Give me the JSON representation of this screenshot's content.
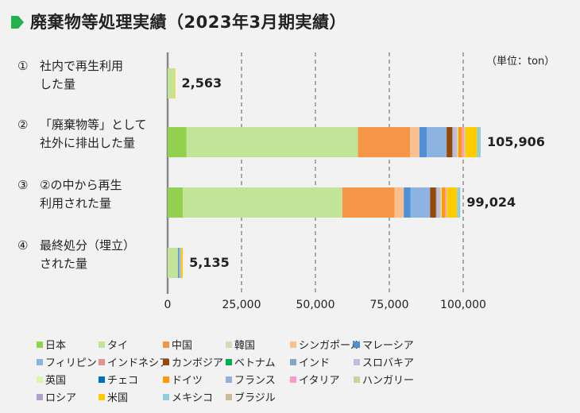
{
  "chart_data": {
    "type": "bar",
    "orientation": "horizontal",
    "stacked": true,
    "title": "廃棄物等処理実績（2023年3月期実績）",
    "unit_label": "（単位：ton）",
    "categories": [
      {
        "num": "①",
        "lines": [
          "社内で再生利用",
          "した量"
        ]
      },
      {
        "num": "②",
        "lines": [
          "「廃棄物等」として",
          "社外に排出した量"
        ]
      },
      {
        "num": "③",
        "lines": [
          "②の中から再生",
          "利用された量"
        ]
      },
      {
        "num": "④",
        "lines": [
          "最終処分（埋立）",
          "された量"
        ]
      }
    ],
    "totals": [
      "2,563",
      "105,906",
      "99,024",
      "5,135"
    ],
    "xlim": [
      0,
      120000
    ],
    "xticks": [
      0,
      25000,
      50000,
      75000,
      100000
    ],
    "xtick_labels": [
      "0",
      "25,000",
      "50,000",
      "75,000",
      "100,000"
    ],
    "grid": "vertical-dashed",
    "legend_position": "bottom",
    "series": [
      {
        "name": "日本",
        "color": "#92d050",
        "values": [
          0,
          6400,
          5100,
          0
        ]
      },
      {
        "name": "タイ",
        "color": "#c2e497",
        "values": [
          2300,
          58000,
          54000,
          3500
        ]
      },
      {
        "name": "中国",
        "color": "#f79646",
        "values": [
          0,
          17600,
          17700,
          0
        ]
      },
      {
        "name": "韓国",
        "color": "#d4dcb4",
        "values": [
          0,
          0,
          0,
          0
        ]
      },
      {
        "name": "シンガポール",
        "color": "#fac090",
        "values": [
          0,
          3200,
          3100,
          0
        ]
      },
      {
        "name": "マレーシア",
        "color": "#4f8fd6",
        "values": [
          0,
          2500,
          2300,
          300
        ]
      },
      {
        "name": "フィリピン",
        "color": "#8db3e2",
        "values": [
          0,
          6700,
          6600,
          500
        ]
      },
      {
        "name": "インドネシア",
        "color": "#da9694",
        "values": [
          0,
          0,
          0,
          0
        ]
      },
      {
        "name": "カンボジア",
        "color": "#974706",
        "values": [
          0,
          1900,
          2000,
          0
        ]
      },
      {
        "name": "ベトナム",
        "color": "#00b050",
        "values": [
          0,
          0,
          0,
          0
        ]
      },
      {
        "name": "インド",
        "color": "#7fa8c8",
        "values": [
          0,
          300,
          200,
          0
        ]
      },
      {
        "name": "スロバキア",
        "color": "#c3bcd6",
        "values": [
          0,
          1400,
          1400,
          235
        ]
      },
      {
        "name": "英国",
        "color": "#d9f5a8",
        "values": [
          0,
          300,
          300,
          0
        ]
      },
      {
        "name": "チェコ",
        "color": "#0070c0",
        "values": [
          0,
          0,
          0,
          0
        ]
      },
      {
        "name": "ドイツ",
        "color": "#ff9900",
        "values": [
          0,
          1200,
          1200,
          0
        ]
      },
      {
        "name": "フランス",
        "color": "#95b3d7",
        "values": [
          0,
          0,
          0,
          0
        ]
      },
      {
        "name": "イタリア",
        "color": "#ff99cc",
        "values": [
          0,
          800,
          500,
          0
        ]
      },
      {
        "name": "ハンガリー",
        "color": "#c3d69b",
        "values": [
          0,
          400,
          124,
          0
        ]
      },
      {
        "name": "ロシア",
        "color": "#b2a1c7",
        "values": [
          0,
          0,
          0,
          0
        ]
      },
      {
        "name": "米国",
        "color": "#ffcc00",
        "values": [
          263,
          4000,
          3400,
          600
        ]
      },
      {
        "name": "メキシコ",
        "color": "#92cddc",
        "values": [
          0,
          1206,
          1100,
          0
        ]
      },
      {
        "name": "ブラジル",
        "color": "#c4bd97",
        "values": [
          0,
          0,
          0,
          0
        ]
      }
    ]
  },
  "colors": {
    "title_icon": "#22b14c"
  }
}
